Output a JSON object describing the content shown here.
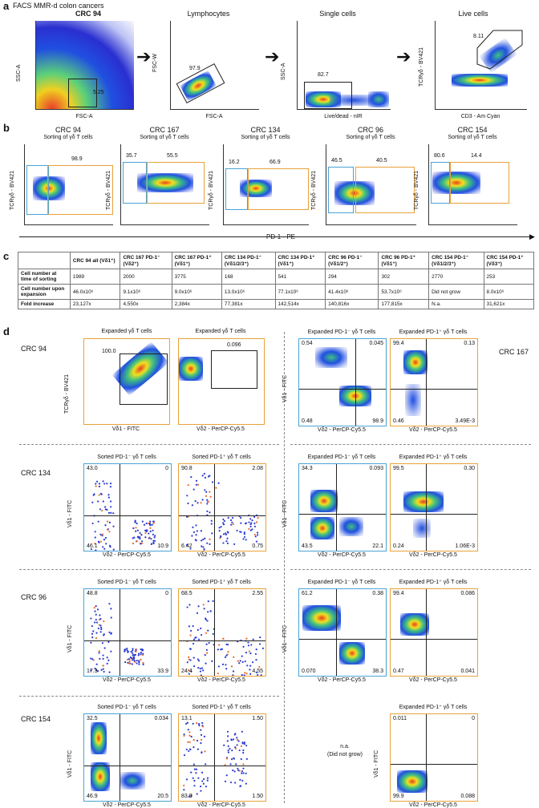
{
  "a": {
    "letter": "a",
    "title": "FACS MMR-d colon cancers",
    "plots": [
      {
        "header": "CRC 94",
        "ylabel": "SSC-A",
        "xlabel": "FSC-A",
        "gate_value": "5.25"
      },
      {
        "header": "Lymphocytes",
        "ylabel": "FSC-W",
        "xlabel": "FSC-A",
        "gate_value": "97.9"
      },
      {
        "header": "Single cells",
        "ylabel": "SSC-A",
        "xlabel": "Live/dead - nIR",
        "gate_value": "82.7"
      },
      {
        "header": "Live cells",
        "ylabel": "TCRγδ - BV421",
        "xlabel": "CD3 - Am Cyan",
        "gate_value": "8.11"
      }
    ]
  },
  "b": {
    "letter": "b",
    "subtitle": "Sorting of γδ T cells",
    "ylabel": "TCRγδ - BV421",
    "xaxis": "PD-1 - PE",
    "plots": [
      {
        "name": "CRC 94",
        "left": "",
        "right": "98.9"
      },
      {
        "name": "CRC 167",
        "left": "35.7",
        "right": "55.5"
      },
      {
        "name": "CRC 134",
        "left": "16.2",
        "right": "66.9"
      },
      {
        "name": "CRC 96",
        "left": "46.5",
        "right": "40.5"
      },
      {
        "name": "CRC 154",
        "left": "80.6",
        "right": "14.4"
      }
    ]
  },
  "c": {
    "letter": "c",
    "headers": [
      "",
      "CRC 94 all (Vδ1⁺)",
      "CRC 167 PD-1⁻ (Vδ2⁺)",
      "CRC 167 PD-1⁺ (Vδ1⁺)",
      "CRC 134 PD-1⁻ (Vδ1/2/3⁺)",
      "CRC 134 PD-1⁺ (Vδ1⁺)",
      "CRC 96 PD-1⁻ (Vδ1/2⁺)",
      "CRC 96 PD-1⁺ (Vδ1⁺)",
      "CRC 154 PD-1⁻ (Vδ1/2/3⁺)",
      "CRC 154 PD-1⁺ (Vδ3⁺)"
    ],
    "rows": [
      [
        "Cell number at time of sorting",
        "1989",
        "2000",
        "3775",
        "168",
        "541",
        "294",
        "302",
        "2770",
        "253"
      ],
      [
        "Cell number upon expansion",
        "46.0x10⁶",
        "9.1x10⁶",
        "9.0x10⁶",
        "13.0x10⁶",
        "77.1x10⁶",
        "41.4x10⁶",
        "53.7x10⁶",
        "Did not grow",
        "8.0x10⁶"
      ],
      [
        "Fold increase",
        "23,127x",
        "4,550x",
        "2,384x",
        "77,381x",
        "142,514x",
        "140,816x",
        "177,815x",
        "N.a.",
        "31,621x"
      ]
    ]
  },
  "d": {
    "letter": "d",
    "labels": {
      "crc94": "CRC 94",
      "crc167": "CRC 167",
      "crc134": "CRC 134",
      "crc96": "CRC 96",
      "crc154": "CRC 154",
      "vd1": "Vδ1 - FITC",
      "vd2": "Vδ2 - PerCP-Cy5.5",
      "tcr": "TCRγδ - BV421",
      "na": "n.a.",
      "na2": "(Did not grow)"
    },
    "crc94": {
      "p1": {
        "title": "Expanded γδ T cells",
        "gate": "100.0"
      },
      "p2": {
        "title": "Expanded γδ T cells",
        "gate": "0.096"
      }
    },
    "crc167": {
      "p1": {
        "title": "Expanded PD-1⁻ γδ T cells",
        "ul": "0.54",
        "ur": "0.045",
        "ll": "0.48",
        "lr": "98.9"
      },
      "p2": {
        "title": "Expanded PD-1⁺ γδ T cells",
        "ul": "99.4",
        "ur": "0.13",
        "ll": "0.46",
        "lr": "3.49E-3"
      }
    },
    "crc134": {
      "p1": {
        "title": "Sorted PD-1⁻ γδ T cells",
        "ul": "43.0",
        "ur": "0",
        "ll": "46.1",
        "lr": "10.9"
      },
      "p2": {
        "title": "Sorted PD-1⁺ γδ T cells",
        "ul": "90.8",
        "ur": "2.08",
        "ll": "6.42",
        "lr": "0.75"
      },
      "p3": {
        "title": "Expanded PD-1⁻ γδ T cells",
        "ul": "34.3",
        "ur": "0.093",
        "ll": "43.5",
        "lr": "22.1"
      },
      "p4": {
        "title": "Expanded PD-1⁺ γδ T cells",
        "ul": "99.5",
        "ur": "0.30",
        "ll": "0.24",
        "lr": "1.06E-3"
      }
    },
    "crc96": {
      "p1": {
        "title": "Sorted PD-1⁻ γδ T cells",
        "ul": "48.8",
        "ur": "0",
        "ll": "17.3",
        "lr": "33.9"
      },
      "p2": {
        "title": "Sorted PD-1⁺ γδ T cells",
        "ul": "68.5",
        "ur": "2.55",
        "ll": "24.4",
        "lr": "4.55"
      },
      "p3": {
        "title": "Expanded PD-1⁻ γδ T cells",
        "ul": "61.2",
        "ur": "0.38",
        "ll": "0.070",
        "lr": "38.3"
      },
      "p4": {
        "title": "Expanded PD-1⁺ γδ T cells",
        "ul": "99.4",
        "ur": "0.086",
        "ll": "0.47",
        "lr": "0.041"
      }
    },
    "crc154": {
      "p1": {
        "title": "Sorted PD-1⁻ γδ T cells",
        "ul": "32.5",
        "ur": "0.034",
        "ll": "46.9",
        "lr": "20.5"
      },
      "p2": {
        "title": "Sorted PD-1⁺ γδ T cells",
        "ul": "13.1",
        "ur": "1.50",
        "ll": "83.9",
        "lr": "1.50"
      },
      "p4": {
        "title": "Expanded PD-1⁺ γδ T cells",
        "ul": "0.011",
        "ur": "0",
        "ll": "99.9",
        "lr": "0.088"
      }
    }
  }
}
